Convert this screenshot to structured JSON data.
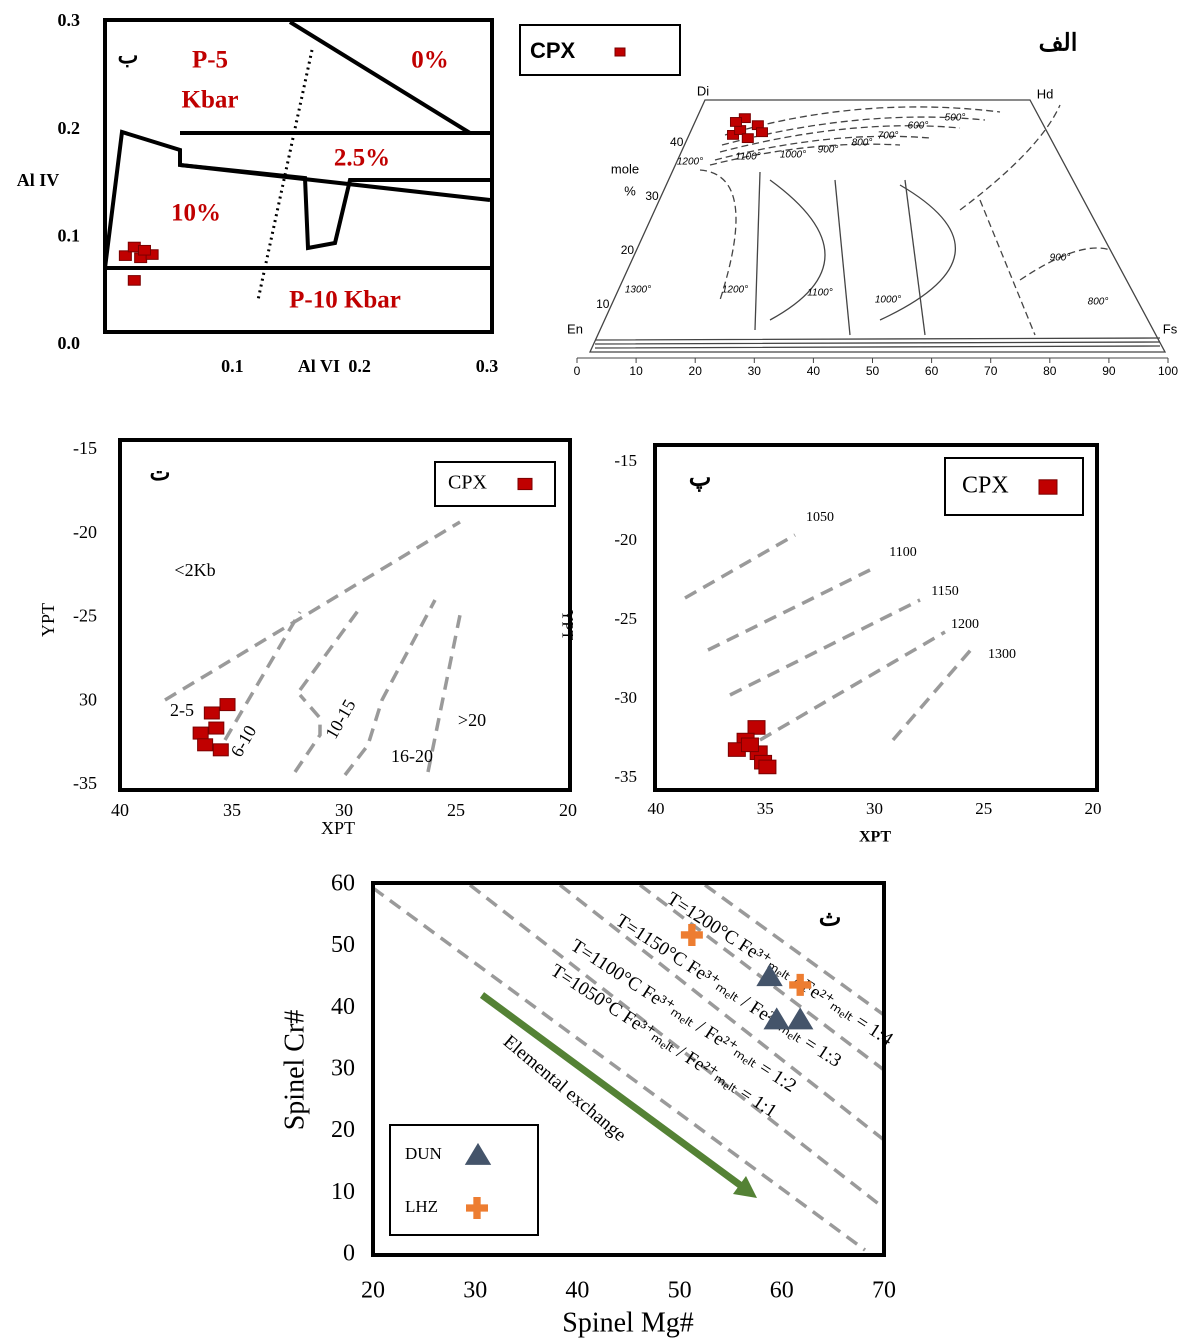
{
  "chart_data": [
    {
      "type": "scatter",
      "panel_label": "ب",
      "x_label": "Al VI",
      "y_label": "Al IV",
      "xlim": [
        0,
        0.3
      ],
      "ylim": [
        0,
        0.3
      ],
      "xticks": [
        0.1,
        0.2,
        0.3
      ],
      "yticks": [
        {
          "value": 0,
          "label": "0.0"
        },
        0.1,
        0.2,
        0.3
      ],
      "annotations": [
        "P-5",
        "Kbar",
        "0%",
        "2.5%",
        "10%",
        "P-10 Kbar"
      ],
      "series": [
        {
          "color": "#c00000",
          "marker": "square",
          "x": [
            0.016,
            0.023,
            0.028,
            0.037,
            0.031,
            0.023
          ],
          "values": [
            0.083,
            0.091,
            0.081,
            0.084,
            0.088,
            0.06
          ]
        }
      ]
    },
    {
      "type": "scatter",
      "panel_label": "الف",
      "y_label": [
        "mole",
        "%"
      ],
      "corner_labels": [
        "Di",
        "Hd",
        "En",
        "Fs"
      ],
      "xlim": [
        0,
        100
      ],
      "ylim": [
        0,
        50
      ],
      "xticks": [
        0,
        10,
        20,
        30,
        40,
        50,
        60,
        70,
        80,
        90,
        100
      ],
      "yticks": [
        10,
        20,
        30,
        40
      ],
      "annotations": [
        "500°",
        "600°",
        "700°",
        "800°",
        "900°",
        "1000°",
        "1100°",
        "1200°",
        "1300°",
        "1200°",
        "1100°",
        "1000°",
        "900°",
        "800°"
      ],
      "series": [
        {
          "name": "CPX",
          "color": "#c00000",
          "marker": "square",
          "x": [
            26.4,
            28.4,
            30.6,
            27.6,
            31.3,
            28.9,
            26.9
          ],
          "values": [
            41.5,
            44.6,
            43.3,
            42.4,
            42.0,
            40.9,
            43.9
          ]
        }
      ]
    },
    {
      "type": "scatter",
      "panel_label": "ت",
      "x_label": "XPT",
      "y_label": "YPT",
      "xlim": [
        40,
        20
      ],
      "ylim": [
        -35,
        -15
      ],
      "xticks": [
        40,
        35,
        30,
        25,
        20
      ],
      "yticks": [
        -15,
        -20,
        -25,
        {
          "value": -30,
          "label": "30"
        },
        -35
      ],
      "annotations": [
        "<2Kb",
        "2-5",
        "6-10",
        "10-15",
        "16-20",
        ">20"
      ],
      "series": [
        {
          "name": "CPX",
          "color": "#c00000",
          "marker": "square",
          "x": [
            35.2,
            35.9,
            36.4,
            35.7,
            36.2,
            35.5
          ],
          "values": [
            -30.2,
            -30.7,
            -31.9,
            -31.6,
            -32.6,
            -32.9
          ]
        }
      ]
    },
    {
      "type": "scatter",
      "panel_label": "پ",
      "x_label": "XPT",
      "y_label": "YPT",
      "xlim": [
        40,
        20
      ],
      "ylim": [
        -35,
        -15
      ],
      "xticks": [
        40,
        35,
        30,
        25,
        20
      ],
      "yticks": [
        -15,
        -20,
        -25,
        -30,
        -35
      ],
      "annotations": [
        "1050",
        "1100",
        "1150",
        "1200",
        "1300"
      ],
      "series": [
        {
          "name": "CPX",
          "color": "#c00000",
          "marker": "square",
          "x": [
            35.4,
            35.9,
            36.3,
            35.3,
            35.1,
            34.9,
            35.7
          ],
          "values": [
            -31.8,
            -32.6,
            -33.2,
            -33.4,
            -34.0,
            -34.3,
            -32.9
          ]
        }
      ]
    },
    {
      "type": "scatter",
      "panel_label": "ث",
      "x_label": "Spinel Mg#",
      "y_label": "Spinel Cr#",
      "xlim": [
        20,
        70
      ],
      "ylim": [
        0,
        60
      ],
      "xticks": [
        20,
        30,
        40,
        50,
        60,
        70
      ],
      "yticks": [
        0,
        10,
        20,
        30,
        40,
        50,
        60
      ],
      "annotations": [
        "T=1200°C Fe³⁺ₘₑₗₜ / Fe²⁺ₘₑₗₜ = 1:4",
        "T=1150°C Fe³⁺ₘₑₗₜ / Fe²⁺ₘₑₗₜ = 1:3",
        "T=1100°C Fe³⁺ₘₑₗₜ / Fe²⁺ₘₑₗₜ = 1:2",
        "T=1050°C Fe³⁺ₘₑₗₜ / Fe²⁺ₘₑₗₜ = 1:1",
        "Elemental exchange"
      ],
      "series": [
        {
          "name": "DUN",
          "color": "#44546a",
          "marker": "triangle",
          "x": [
            58.8,
            59.5,
            61.8
          ],
          "values": [
            45.2,
            38.2,
            38.2
          ]
        },
        {
          "name": "LHZ",
          "color": "#ed7d31",
          "marker": "plus",
          "x": [
            51.2,
            61.8
          ],
          "values": [
            51.9,
            43.8
          ]
        }
      ]
    }
  ]
}
